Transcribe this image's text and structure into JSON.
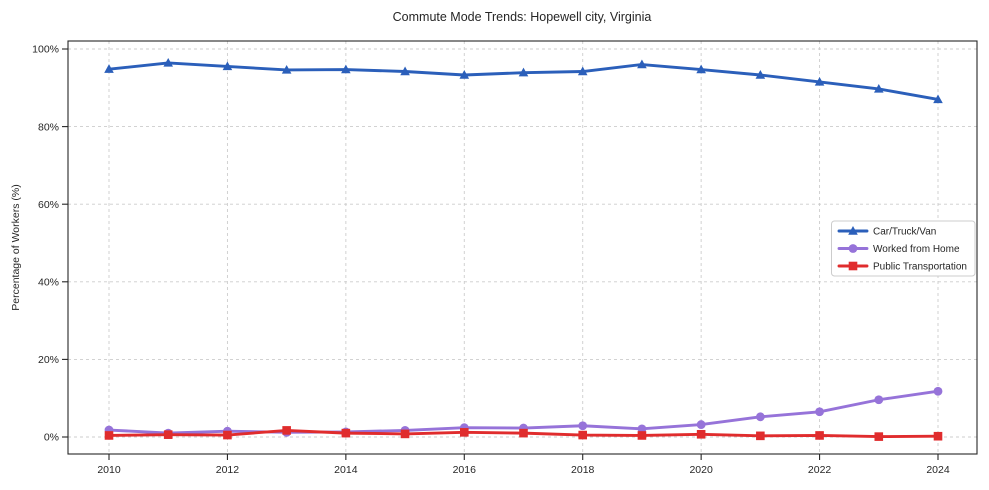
{
  "chart_data": {
    "type": "line",
    "title": "Commute Mode Trends: Hopewell city, Virginia",
    "xlabel": "",
    "ylabel": "Percentage of Workers (%)",
    "x": [
      2010,
      2011,
      2012,
      2013,
      2014,
      2015,
      2016,
      2017,
      2018,
      2019,
      2020,
      2021,
      2022,
      2023,
      2024
    ],
    "x_tick_values": [
      2010,
      2012,
      2014,
      2016,
      2018,
      2020,
      2022,
      2024
    ],
    "x_tick_labels": [
      "2010",
      "2012",
      "2014",
      "2016",
      "2018",
      "2020",
      "2022",
      "2024"
    ],
    "y_tick_values": [
      0,
      20,
      40,
      60,
      80,
      100
    ],
    "y_tick_labels": [
      "0%",
      "20%",
      "40%",
      "60%",
      "80%",
      "100%"
    ],
    "xlim": [
      2009.31,
      2024.66
    ],
    "ylim": [
      -4.4,
      102.1
    ],
    "grid": true,
    "series": [
      {
        "name": "Car/Truck/Van",
        "marker": "triangle",
        "color": "#2b5fba",
        "values": [
          94.8,
          96.4,
          95.5,
          94.6,
          94.7,
          94.2,
          93.3,
          93.9,
          94.2,
          96.0,
          94.7,
          93.3,
          91.5,
          89.7,
          87.0
        ]
      },
      {
        "name": "Worked from Home",
        "marker": "circle",
        "color": "#9673d9",
        "values": [
          1.8,
          1.0,
          1.5,
          1.2,
          1.3,
          1.7,
          2.4,
          2.3,
          2.9,
          2.1,
          3.2,
          5.2,
          6.5,
          9.6,
          11.8
        ]
      },
      {
        "name": "Public Transportation",
        "marker": "square",
        "color": "#e02c2d",
        "values": [
          0.4,
          0.6,
          0.5,
          1.7,
          1.0,
          0.8,
          1.2,
          1.0,
          0.5,
          0.4,
          0.7,
          0.3,
          0.4,
          0.1,
          0.2
        ]
      }
    ],
    "legend": {
      "position": "center-right-inset",
      "entries": [
        "Car/Truck/Van",
        "Worked from Home",
        "Public Transportation"
      ]
    },
    "colors": {
      "text": "#262626",
      "grid": "#cccccc",
      "spine": "#262626",
      "legend_border": "#cccccc",
      "background": "#ffffff"
    }
  }
}
